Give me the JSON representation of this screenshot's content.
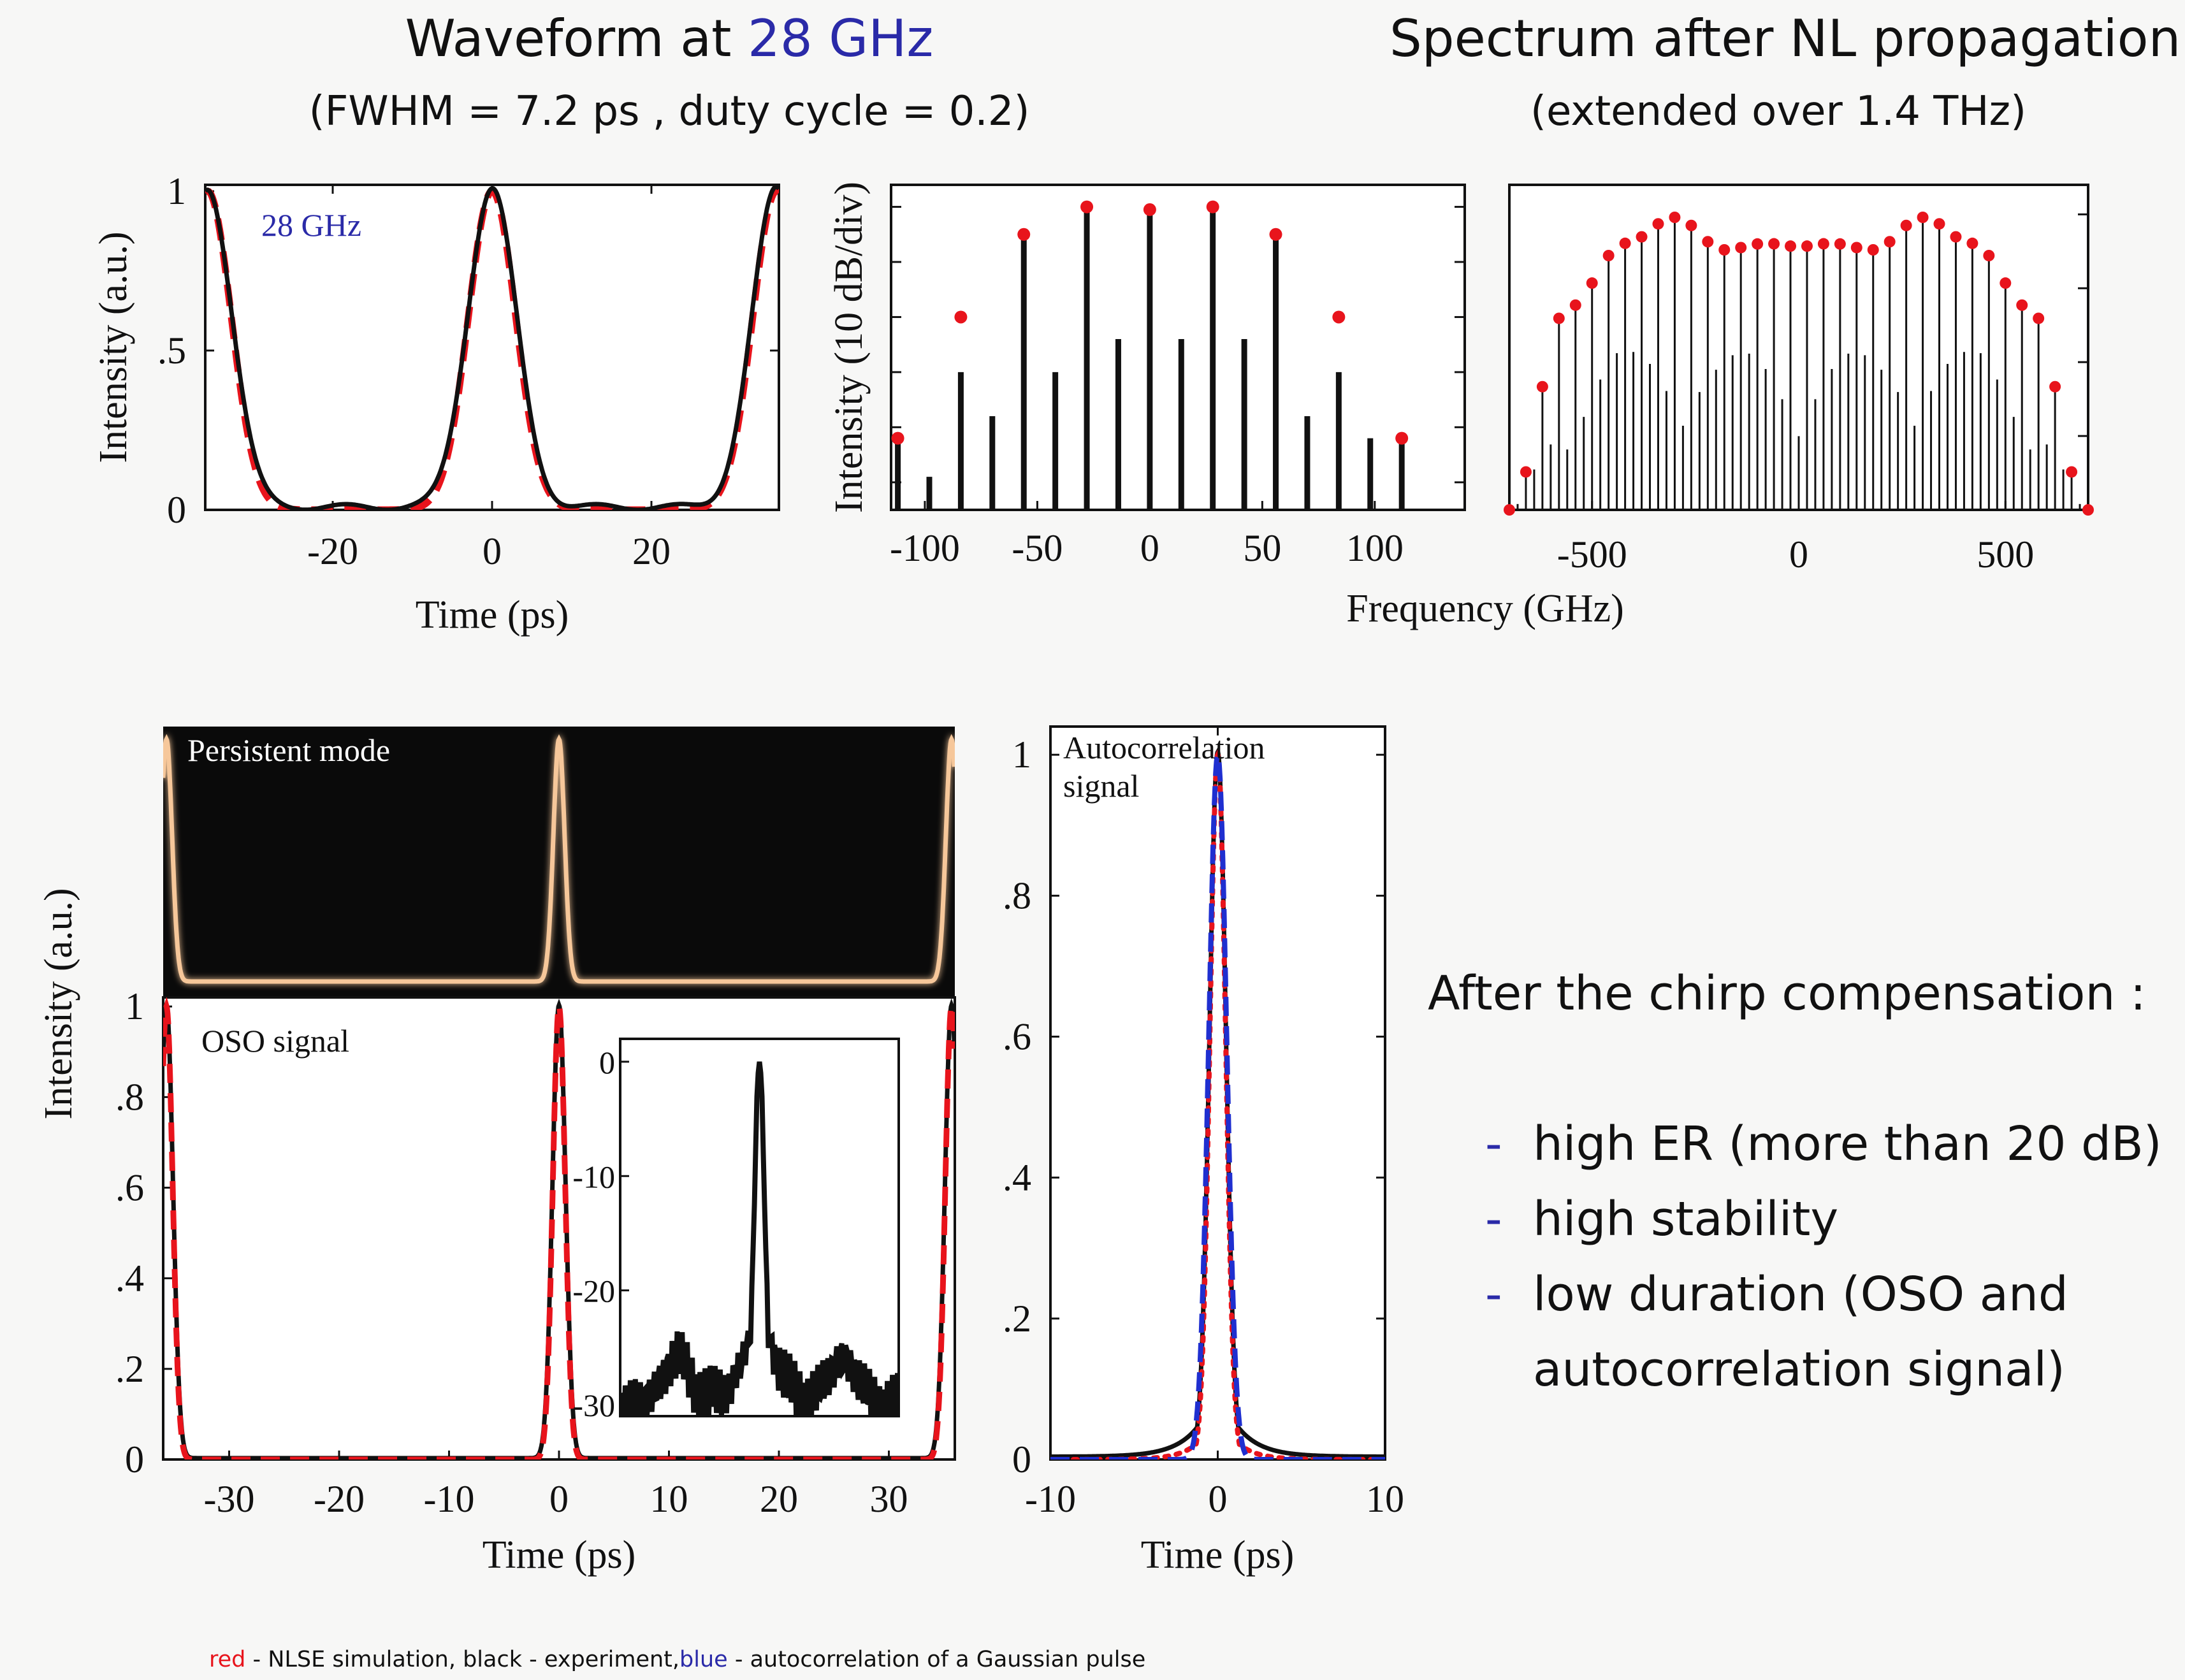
{
  "header": {
    "left_title_prefix": "Waveform at",
    "left_title_highlight": "28 GHz",
    "left_subtitle": "(FWHM = 7.2 ps , duty cycle = 0.2)",
    "right_title": "Spectrum after NL propagation",
    "right_subtitle": "(extended over 1.4 THz)",
    "highlight_color": "#2a2aa8"
  },
  "colors": {
    "simulation": "#e8141c",
    "experiment": "#111111",
    "gaussian": "#1f2fd0",
    "persistent_trace": "#f6c79a",
    "persistent_bg": "#0a0a0a"
  },
  "summary": {
    "heading": "After the chirp compensation :",
    "items": [
      "high ER (more than 20 dB)",
      "high stability",
      "low duration (OSO and",
      "autocorrelation signal)"
    ]
  },
  "footnote": {
    "red_word": "red",
    "red_rest": " - NLSE simulation, black - experiment,",
    "blue_word": "blue",
    "blue_rest": " - autocorrelation of a Gaussian pulse"
  },
  "chart_data": [
    {
      "id": "waveform",
      "type": "line",
      "annotation": "28 GHz",
      "xlabel": "Time (ps)",
      "ylabel": "Intensity (a.u.)",
      "xlim": [
        -36,
        36
      ],
      "ylim": [
        0,
        1.02
      ],
      "xticks": [
        {
          "v": -20,
          "label": "-20"
        },
        {
          "v": 0,
          "label": "0"
        },
        {
          "v": 20,
          "label": "20"
        }
      ],
      "yticks": [
        {
          "v": 0,
          "label": "0"
        },
        {
          "v": 0.5,
          "label": ".5"
        },
        {
          "v": 1,
          "label": "1"
        }
      ],
      "period_ps": 35.7,
      "fwhm_ps": 7.2,
      "series": [
        {
          "style": "experiment",
          "peaks_at": [
            -35.7,
            0,
            35.7
          ],
          "fwhm": 7.2,
          "baseline": 0.015
        },
        {
          "style": "simulation",
          "peaks_at": [
            -35.7,
            0,
            35.7
          ],
          "fwhm": 7.0,
          "baseline": 0.0
        }
      ]
    },
    {
      "id": "spectrum-narrow",
      "type": "bar",
      "xlabel": "",
      "ylabel": "Intensity (10 dB/div)",
      "xlim": [
        -115,
        140
      ],
      "xticks": [
        {
          "v": -100,
          "label": "-100"
        },
        {
          "v": -50,
          "label": "-50"
        },
        {
          "v": 0,
          "label": "0"
        },
        {
          "v": 50,
          "label": "50"
        },
        {
          "v": 100,
          "label": "100"
        }
      ],
      "db_floor": -55,
      "db_top": 0,
      "lines_experiment": [
        {
          "f": -112,
          "db": -42
        },
        {
          "f": -98,
          "db": -49
        },
        {
          "f": -84,
          "db": -30
        },
        {
          "f": -70,
          "db": -38
        },
        {
          "f": -56,
          "db": -5
        },
        {
          "f": -42,
          "db": -30
        },
        {
          "f": -28,
          "db": -1
        },
        {
          "f": -14,
          "db": -24
        },
        {
          "f": 0,
          "db": -1
        },
        {
          "f": 14,
          "db": -24
        },
        {
          "f": 28,
          "db": -1
        },
        {
          "f": 42,
          "db": -24
        },
        {
          "f": 56,
          "db": -5
        },
        {
          "f": 70,
          "db": -38
        },
        {
          "f": 84,
          "db": -30
        },
        {
          "f": 98,
          "db": -42
        },
        {
          "f": 112,
          "db": -42
        }
      ],
      "points_simulation": [
        {
          "f": -112,
          "db": -42
        },
        {
          "f": -84,
          "db": -20
        },
        {
          "f": -56,
          "db": -5
        },
        {
          "f": -28,
          "db": 0
        },
        {
          "f": 0,
          "db": -0.5
        },
        {
          "f": 28,
          "db": 0
        },
        {
          "f": 56,
          "db": -5
        },
        {
          "f": 84,
          "db": -20
        },
        {
          "f": 112,
          "db": -42
        }
      ]
    },
    {
      "id": "spectrum-wide",
      "type": "bar",
      "xlabel": "Frequency (GHz)",
      "ylabel": "",
      "xlim": [
        -700,
        700
      ],
      "xticks": [
        {
          "v": -500,
          "label": "-500"
        },
        {
          "v": 0,
          "label": "0"
        },
        {
          "v": 500,
          "label": "500"
        }
      ],
      "line_spacing_ghz": 28,
      "envelope_points": [
        {
          "f": -700,
          "y": 0.0
        },
        {
          "f": -560,
          "y": 0.62
        },
        {
          "f": -420,
          "y": 0.82
        },
        {
          "f": -300,
          "y": 0.9
        },
        {
          "f": -180,
          "y": 0.8
        },
        {
          "f": -80,
          "y": 0.82
        },
        {
          "f": 0,
          "y": 0.81
        },
        {
          "f": 80,
          "y": 0.82
        },
        {
          "f": 180,
          "y": 0.8
        },
        {
          "f": 300,
          "y": 0.9
        },
        {
          "f": 420,
          "y": 0.82
        },
        {
          "f": 560,
          "y": 0.62
        },
        {
          "f": 700,
          "y": 0.0
        }
      ]
    },
    {
      "id": "persistent",
      "type": "line",
      "annotation": "Persistent mode",
      "xlim": [
        -36,
        36
      ],
      "peaks_at": [
        -35.7,
        0,
        35.7
      ]
    },
    {
      "id": "oso",
      "type": "line",
      "annotation": "OSO signal",
      "shared_ylabel": "Intensity (a.u.)",
      "xlabel": "Time (ps)",
      "xlim": [
        -36,
        36
      ],
      "ylim": [
        0,
        1.0
      ],
      "xticks": [
        {
          "v": -30,
          "label": "-30"
        },
        {
          "v": -20,
          "label": "-20"
        },
        {
          "v": -10,
          "label": "-10"
        },
        {
          "v": 0,
          "label": "0"
        },
        {
          "v": 10,
          "label": "10"
        },
        {
          "v": 20,
          "label": "20"
        },
        {
          "v": 30,
          "label": "30"
        }
      ],
      "yticks": [
        {
          "v": 0,
          "label": "0"
        },
        {
          "v": 0.2,
          "label": ".2"
        },
        {
          "v": 0.4,
          "label": ".4"
        },
        {
          "v": 0.6,
          "label": ".6"
        },
        {
          "v": 0.8,
          "label": ".8"
        },
        {
          "v": 1.0,
          "label": "1"
        }
      ],
      "peaks_at": [
        -35.7,
        0,
        35.7
      ],
      "fwhm_ps": 1.4
    },
    {
      "id": "oso-inset",
      "type": "line",
      "ylim": [
        -31,
        2
      ],
      "yticks": [
        {
          "v": 0,
          "label": "0"
        },
        {
          "v": -10,
          "label": "-10"
        },
        {
          "v": -20,
          "label": "-20"
        },
        {
          "v": -30,
          "label": "-30"
        }
      ]
    },
    {
      "id": "autocorrelation",
      "type": "line",
      "annotation_line1": "Autocorrelation",
      "annotation_line2": "signal",
      "xlabel": "Time (ps)",
      "xlim": [
        -10,
        10
      ],
      "ylim": [
        0,
        1.0
      ],
      "xticks": [
        {
          "v": -10,
          "label": "-10"
        },
        {
          "v": 0,
          "label": "0"
        },
        {
          "v": 10,
          "label": "10"
        }
      ],
      "yticks": [
        {
          "v": 0,
          "label": "0"
        },
        {
          "v": 0.2,
          "label": ".2"
        },
        {
          "v": 0.4,
          "label": ".4"
        },
        {
          "v": 0.6,
          "label": ".6"
        },
        {
          "v": 0.8,
          "label": ".8"
        },
        {
          "v": 1,
          "label": "1"
        }
      ]
    }
  ]
}
